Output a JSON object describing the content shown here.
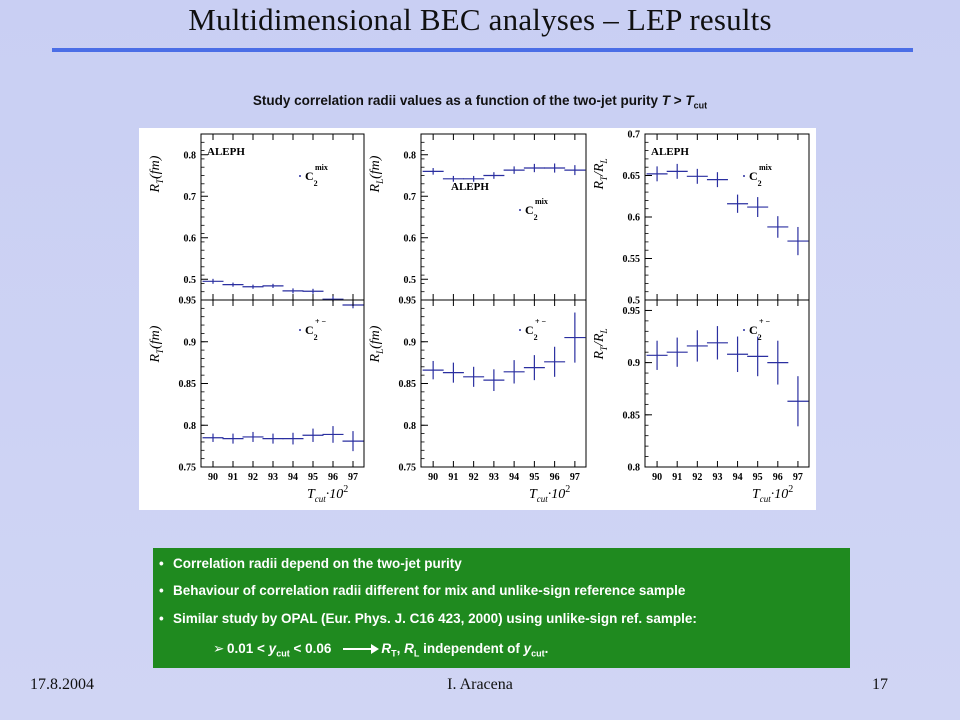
{
  "title": "Multidimensional  BEC analyses – LEP results",
  "subtitle": {
    "prefix": "Study correlation radii values as a function of the two-jet purity ",
    "t_var": "T",
    "relation": " > ",
    "tcut_main": "T",
    "tcut_sub": "cut"
  },
  "summary": {
    "bullet_glyph": "•",
    "bullets": [
      "Correlation radii depend on the two-jet purity",
      "Behaviour of correlation radii different for mix and unlike-sign reference sample",
      "Similar study by OPAL (Eur. Phys. J. C16 423, 2000) using unlike-sign ref. sample:"
    ],
    "sub": {
      "arrow_glyph": "➢",
      "range_start": "0.01 < ",
      "y_main": "y",
      "y_sub": "cut",
      "range_end": " < 0.06",
      "r_t_main": "R",
      "r_t_sub": "T",
      "sep": ", ",
      "r_l_main": "R",
      "r_l_sub": "L",
      "independent": " independent of ",
      "y2_main": "y",
      "y2_sub": "cut",
      "period": "."
    }
  },
  "footer": {
    "date": "17.8.2004",
    "author": "I. Aracena",
    "page": "17"
  },
  "chart_data": {
    "type": "scatter",
    "experiment_label": "ALEPH",
    "x": [
      90,
      91,
      92,
      93,
      94,
      95,
      96,
      97
    ],
    "x_axis_label": {
      "main": "T",
      "sub": "cut",
      "rest": "·10",
      "sup": "2"
    },
    "colors": {
      "markers": "#2a2fa0",
      "axes": "#000000",
      "panel": "#ffffff"
    },
    "columns": [
      {
        "ylabel": {
          "main": "R",
          "sub": "T",
          "rest": "(fm)"
        },
        "show_experiment_label": true,
        "top": {
          "ylim": [
            0.45,
            0.85
          ],
          "yticks": [
            "0.5",
            "0.6",
            "0.7",
            "0.8"
          ],
          "yticks_values": [
            0.5,
            0.6,
            0.7,
            0.8
          ],
          "reference": {
            "main": "C",
            "sub": "2",
            "sup": "mix"
          },
          "values": [
            0.495,
            0.487,
            0.482,
            0.484,
            0.472,
            0.471,
            0.452,
            0.438
          ],
          "errors": [
            0.006,
            0.005,
            0.005,
            0.005,
            0.006,
            0.006,
            0.007,
            0.008
          ]
        },
        "bottom": {
          "ylim": [
            0.75,
            0.95
          ],
          "yticks": [
            "0.75",
            "0.8",
            "0.85",
            "0.9",
            "0.95"
          ],
          "yticks_values": [
            0.75,
            0.8,
            0.85,
            0.9,
            0.95
          ],
          "reference": {
            "main": "C",
            "sub": "2",
            "sup": "+ −"
          },
          "values": [
            0.785,
            0.784,
            0.786,
            0.784,
            0.784,
            0.788,
            0.789,
            0.781
          ],
          "errors": [
            0.005,
            0.006,
            0.006,
            0.006,
            0.007,
            0.008,
            0.01,
            0.012
          ]
        }
      },
      {
        "ylabel": {
          "main": "R",
          "sub": "L",
          "rest": "(fm)"
        },
        "show_experiment_label": true,
        "top": {
          "ylim": [
            0.45,
            0.85
          ],
          "yticks": [
            "0.5",
            "0.6",
            "0.7",
            "0.8"
          ],
          "yticks_values": [
            0.5,
            0.6,
            0.7,
            0.8
          ],
          "reference": {
            "main": "C",
            "sub": "2",
            "sup": "mix"
          },
          "values": [
            0.76,
            0.742,
            0.742,
            0.75,
            0.763,
            0.768,
            0.768,
            0.763
          ],
          "errors": [
            0.008,
            0.007,
            0.007,
            0.008,
            0.009,
            0.01,
            0.011,
            0.012
          ]
        },
        "bottom": {
          "ylim": [
            0.75,
            0.95
          ],
          "yticks": [
            "0.75",
            "0.8",
            "0.85",
            "0.9",
            "0.95"
          ],
          "yticks_values": [
            0.75,
            0.8,
            0.85,
            0.9,
            0.95
          ],
          "reference": {
            "main": "C",
            "sub": "2",
            "sup": "+ −"
          },
          "values": [
            0.866,
            0.863,
            0.858,
            0.854,
            0.864,
            0.869,
            0.876,
            0.905
          ],
          "errors": [
            0.011,
            0.012,
            0.012,
            0.013,
            0.014,
            0.015,
            0.018,
            0.03
          ]
        }
      },
      {
        "ylabel": {
          "main": "R",
          "sub": "T",
          "rest": "/R",
          "sub2": "L"
        },
        "show_experiment_label": true,
        "top": {
          "ylim": [
            0.5,
            0.7
          ],
          "yticks": [
            "0.5",
            "0.55",
            "0.6",
            "0.65",
            "0.7"
          ],
          "yticks_values": [
            0.5,
            0.55,
            0.6,
            0.65,
            0.7
          ],
          "reference": {
            "main": "C",
            "sub": "2",
            "sup": "mix"
          },
          "values": [
            0.652,
            0.655,
            0.649,
            0.645,
            0.616,
            0.612,
            0.588,
            0.571
          ],
          "errors": [
            0.009,
            0.009,
            0.009,
            0.009,
            0.011,
            0.012,
            0.013,
            0.017
          ]
        },
        "bottom": {
          "ylim": [
            0.8,
            0.96
          ],
          "yticks": [
            "0.8",
            "0.85",
            "0.9",
            "0.95"
          ],
          "yticks_values": [
            0.8,
            0.85,
            0.9,
            0.95
          ],
          "reference": {
            "main": "C",
            "sub": "2",
            "sup": "+ −"
          },
          "values": [
            0.907,
            0.91,
            0.916,
            0.919,
            0.908,
            0.906,
            0.9,
            0.863
          ],
          "errors": [
            0.014,
            0.014,
            0.015,
            0.016,
            0.017,
            0.019,
            0.021,
            0.024
          ]
        }
      }
    ]
  }
}
